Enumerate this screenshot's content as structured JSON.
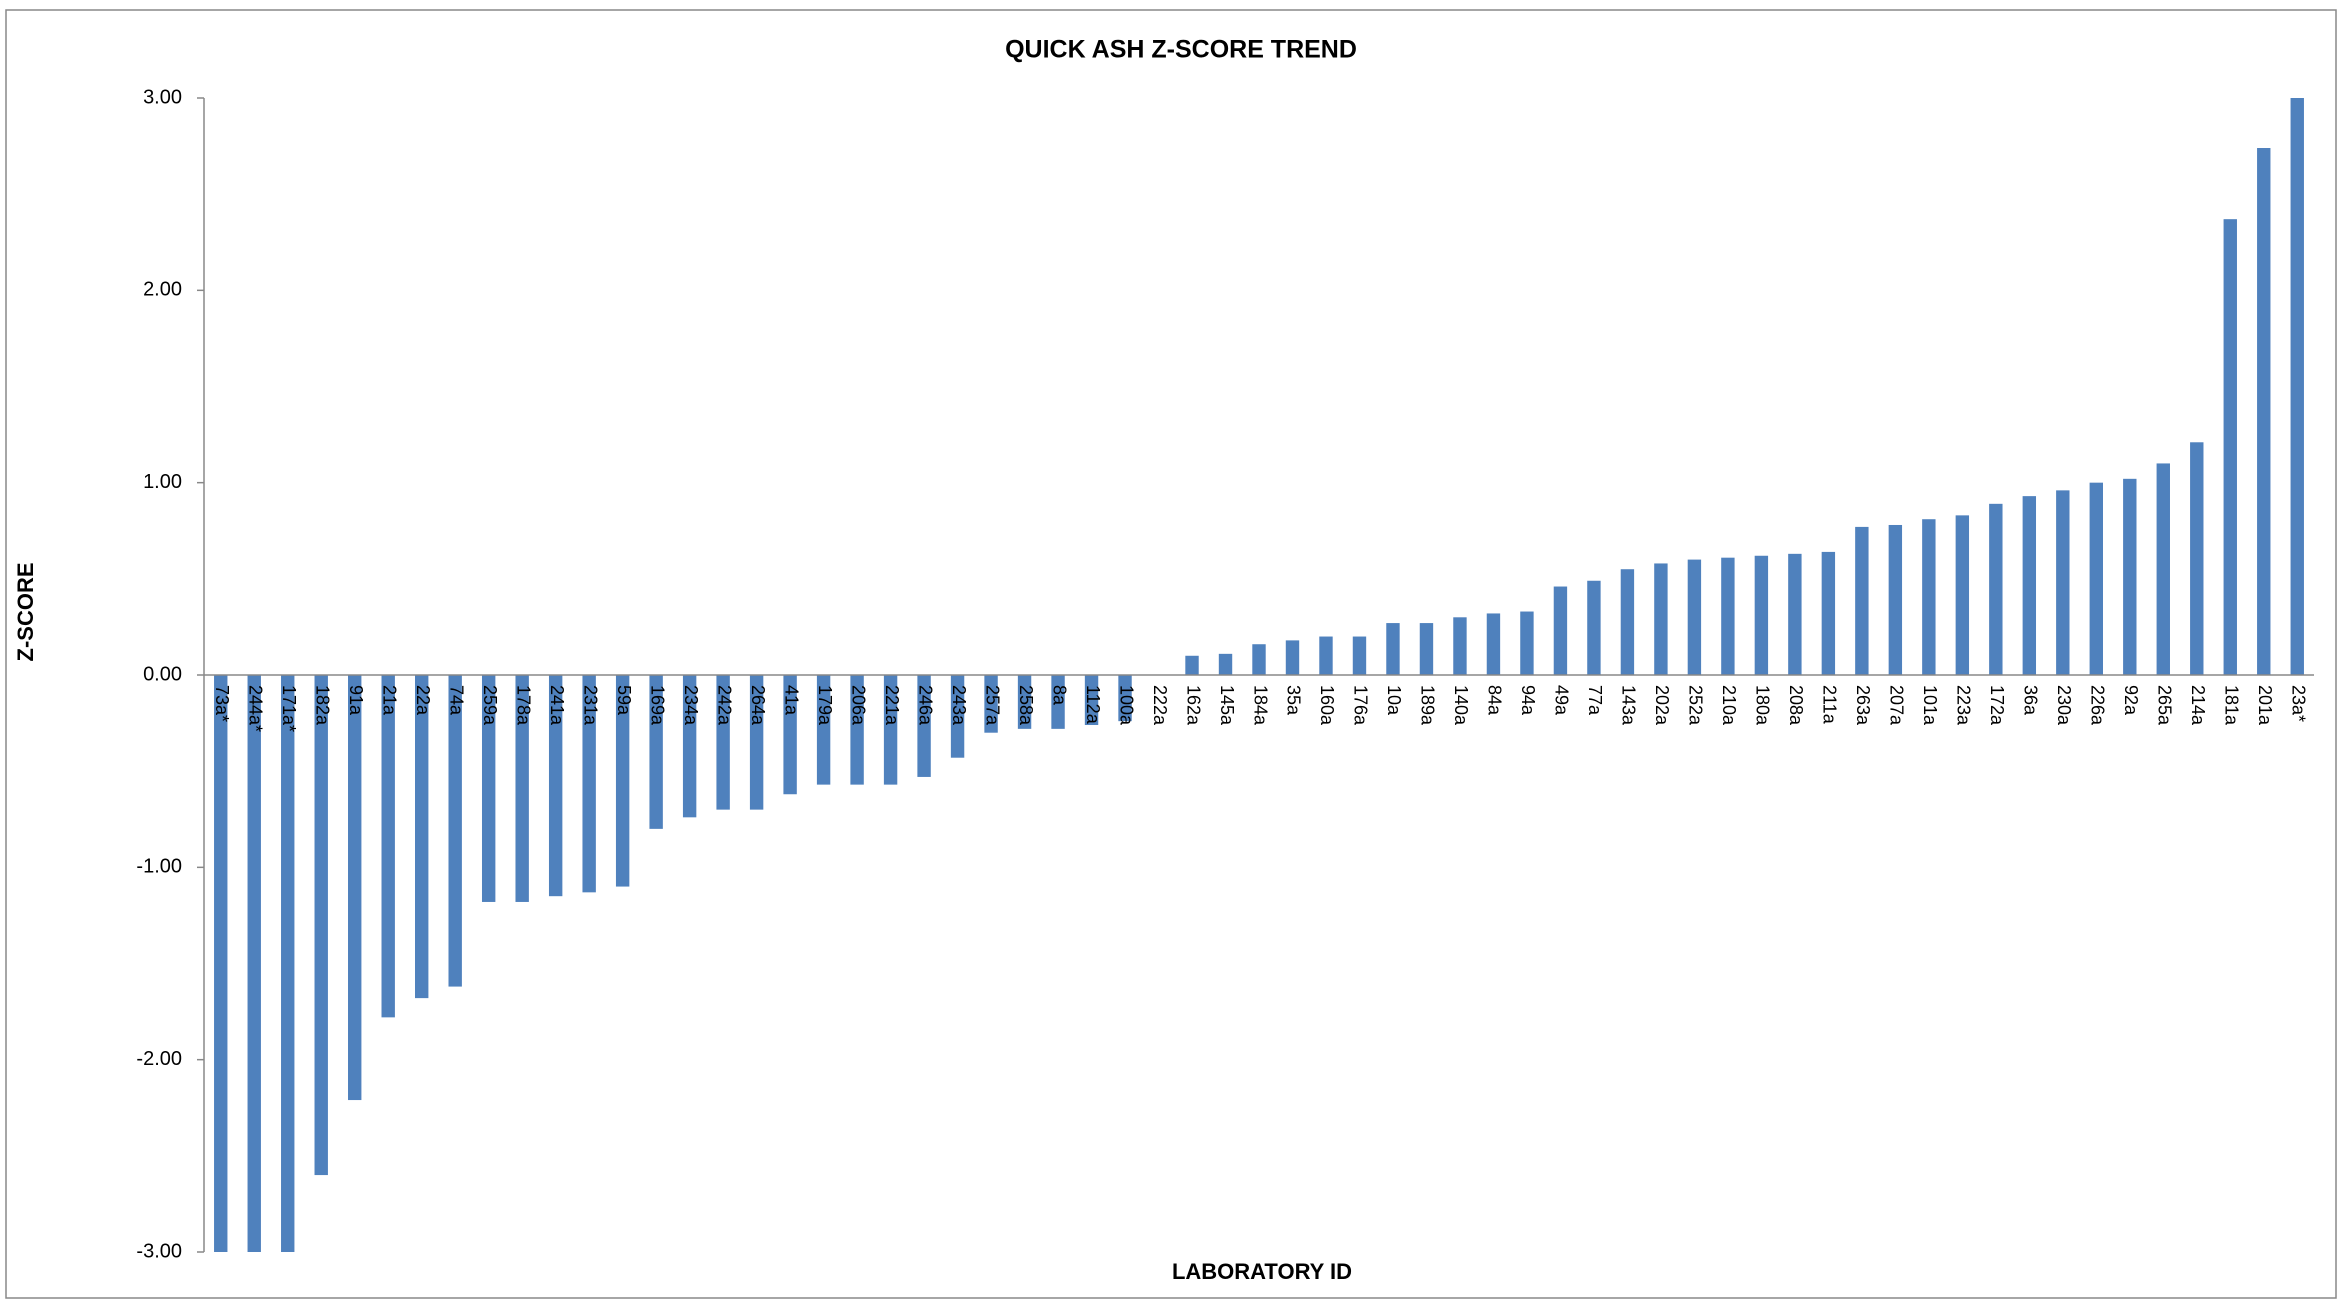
{
  "chart_data": {
    "type": "bar",
    "title": "QUICK ASH Z-SCORE TREND",
    "x_label": "LABORATORY ID",
    "y_label": "Z-SCORE",
    "categories": [
      "73a*",
      "244a*",
      "171a*",
      "182a",
      "91a",
      "21a",
      "22a",
      "74a",
      "259a",
      "178a",
      "241a",
      "231a",
      "59a",
      "169a",
      "234a",
      "242a",
      "264a",
      "41a",
      "179a",
      "206a",
      "221a",
      "246a",
      "243a",
      "257a",
      "258a",
      "8a",
      "112a",
      "100a",
      "222a",
      "162a",
      "145a",
      "184a",
      "35a",
      "160a",
      "176a",
      "10a",
      "189a",
      "140a",
      "84a",
      "94a",
      "49a",
      "77a",
      "143a",
      "202a",
      "252a",
      "210a",
      "180a",
      "208a",
      "211a",
      "263a",
      "207a",
      "101a",
      "223a",
      "172a",
      "36a",
      "230a",
      "226a",
      "92a",
      "265a",
      "214a",
      "181a",
      "201a",
      "23a*"
    ],
    "values": [
      -3.0,
      -3.0,
      -3.0,
      -2.6,
      -2.21,
      -1.78,
      -1.68,
      -1.62,
      -1.18,
      -1.18,
      -1.15,
      -1.13,
      -1.1,
      -0.8,
      -0.74,
      -0.7,
      -0.7,
      -0.62,
      -0.57,
      -0.57,
      -0.57,
      -0.53,
      -0.43,
      -0.3,
      -0.28,
      -0.28,
      -0.26,
      -0.24,
      0.0,
      0.1,
      0.11,
      0.16,
      0.18,
      0.2,
      0.2,
      0.27,
      0.27,
      0.3,
      0.32,
      0.33,
      0.46,
      0.49,
      0.55,
      0.58,
      0.6,
      0.61,
      0.62,
      0.63,
      0.64,
      0.77,
      0.78,
      0.81,
      0.83,
      0.89,
      0.93,
      0.96,
      1.0,
      1.02,
      1.1,
      1.21,
      2.37,
      2.74,
      3.0
    ],
    "color": "#4f81bd",
    "ylim": [
      -3,
      3
    ],
    "yticks": [
      {
        "value": -3,
        "label": "-3.00"
      },
      {
        "value": -2,
        "label": "-2.00"
      },
      {
        "value": -1,
        "label": "-1.00"
      },
      {
        "value": 0,
        "label": "0.00"
      },
      {
        "value": 1,
        "label": "1.00"
      },
      {
        "value": 2,
        "label": "2.00"
      },
      {
        "value": 3,
        "label": "3.00"
      }
    ],
    "grid": false
  }
}
